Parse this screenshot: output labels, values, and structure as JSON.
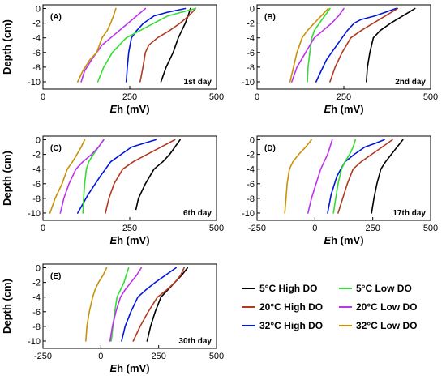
{
  "chart_data": [
    {
      "type": "line",
      "panel_label": "(A)",
      "day_label": "1st day",
      "xlabel_prefix": "E",
      "xlabel_suffix": "h (mV)",
      "ylabel": "Depth (cm)",
      "xlim": [
        0,
        500
      ],
      "ylim": [
        -11,
        0.5
      ],
      "xticks": [
        0,
        250,
        500
      ],
      "yticks": [
        0,
        -2,
        -4,
        -6,
        -8,
        -10
      ],
      "series": [
        {
          "name": "5°C High DO",
          "color": "#000000",
          "x": [
            425,
            418,
            410,
            400,
            390,
            375,
            365,
            355,
            340
          ],
          "y": [
            0,
            -1,
            -2,
            -3,
            -4,
            -6,
            -7,
            -8,
            -10
          ]
        },
        {
          "name": "20°C High DO",
          "color": "#b03a22",
          "x": [
            440,
            420,
            395,
            365,
            330,
            305,
            295,
            288,
            280
          ],
          "y": [
            0,
            -1,
            -2,
            -3,
            -4,
            -5,
            -6,
            -8,
            -10
          ]
        },
        {
          "name": "32°C High DO",
          "color": "#0018d8",
          "x": [
            410,
            360,
            320,
            290,
            270,
            255,
            247,
            243,
            240
          ],
          "y": [
            0,
            -0.5,
            -1,
            -2,
            -3,
            -4,
            -6,
            -8,
            -10
          ]
        },
        {
          "name": "5°C Low DO",
          "color": "#33dd33",
          "x": [
            440,
            400,
            360,
            320,
            280,
            240,
            200,
            175,
            158
          ],
          "y": [
            0,
            -0.5,
            -1,
            -2,
            -3,
            -4,
            -6,
            -8,
            -10
          ]
        },
        {
          "name": "20°C Low DO",
          "color": "#bb33ee",
          "x": [
            295,
            270,
            245,
            220,
            195,
            170,
            140,
            120,
            110
          ],
          "y": [
            0,
            -1,
            -2,
            -3,
            -4,
            -5,
            -7,
            -8.5,
            -10
          ]
        },
        {
          "name": "32°C Low DO",
          "color": "#c8920a",
          "x": [
            210,
            203,
            195,
            185,
            170,
            155,
            135,
            115,
            100
          ],
          "y": [
            0,
            -1,
            -2,
            -3,
            -4,
            -6,
            -7,
            -8.5,
            -10
          ]
        }
      ]
    },
    {
      "type": "line",
      "panel_label": "(B)",
      "day_label": "2nd day",
      "xlabel_prefix": "E",
      "xlabel_suffix": "h (mV)",
      "xlim": [
        0,
        500
      ],
      "ylim": [
        -11,
        0.5
      ],
      "xticks": [
        0,
        250,
        500
      ],
      "yticks": [
        0,
        -2,
        -4,
        -6,
        -8,
        -10
      ],
      "series": [
        {
          "name": "5°C High DO",
          "color": "#000000",
          "x": [
            455,
            420,
            385,
            355,
            335,
            325,
            318,
            315
          ],
          "y": [
            0,
            -1,
            -2,
            -3,
            -4,
            -6,
            -8,
            -10
          ]
        },
        {
          "name": "20°C High DO",
          "color": "#b03a22",
          "x": [
            405,
            370,
            335,
            300,
            270,
            245,
            225,
            210
          ],
          "y": [
            0,
            -1,
            -2,
            -3,
            -4,
            -6,
            -8,
            -10
          ]
        },
        {
          "name": "32°C High DO",
          "color": "#0018d8",
          "x": [
            400,
            340,
            300,
            280,
            260,
            230,
            200,
            180,
            170
          ],
          "y": [
            0,
            -1,
            -1.5,
            -2,
            -3,
            -5,
            -7,
            -9,
            -10
          ]
        },
        {
          "name": "5°C Low DO",
          "color": "#33dd33",
          "x": [
            210,
            195,
            180,
            165,
            158,
            152,
            147,
            145
          ],
          "y": [
            0,
            -1,
            -2,
            -3,
            -4,
            -6,
            -8,
            -10
          ]
        },
        {
          "name": "20°C Low DO",
          "color": "#bb33ee",
          "x": [
            250,
            235,
            215,
            190,
            165,
            140,
            115,
            100
          ],
          "y": [
            0,
            -1,
            -2,
            -3,
            -4,
            -6,
            -8,
            -10
          ]
        },
        {
          "name": "32°C Low DO",
          "color": "#c8920a",
          "x": [
            205,
            185,
            165,
            145,
            130,
            115,
            105,
            95
          ],
          "y": [
            0,
            -1,
            -2,
            -3,
            -4,
            -6,
            -8,
            -10
          ]
        }
      ]
    },
    {
      "type": "line",
      "panel_label": "(C)",
      "day_label": "6th day",
      "xlabel_prefix": "E",
      "xlabel_suffix": "h (mV)",
      "ylabel": "Depth (cm)",
      "xlim": [
        0,
        500
      ],
      "ylim": [
        -11,
        0.5
      ],
      "xticks": [
        0,
        250,
        500
      ],
      "yticks": [
        0,
        -2,
        -4,
        -6,
        -8,
        -10
      ],
      "series": [
        {
          "name": "5°C High DO",
          "color": "#000000",
          "x": [
            395,
            380,
            365,
            345,
            320,
            295,
            275,
            268
          ],
          "y": [
            0,
            -1,
            -2,
            -3,
            -4,
            -6,
            -8,
            -9.5
          ]
        },
        {
          "name": "20°C High DO",
          "color": "#b03a22",
          "x": [
            380,
            340,
            300,
            260,
            230,
            205,
            190,
            180
          ],
          "y": [
            0,
            -1,
            -2,
            -3,
            -4,
            -6,
            -8,
            -10
          ]
        },
        {
          "name": "32°C High DO",
          "color": "#0018d8",
          "x": [
            325,
            290,
            255,
            225,
            195,
            165,
            130,
            100
          ],
          "y": [
            0,
            -0.5,
            -1,
            -2,
            -3,
            -5,
            -7.5,
            -10
          ]
        },
        {
          "name": "5°C Low DO",
          "color": "#33dd33",
          "x": [
            175,
            160,
            145,
            132,
            125,
            120,
            117,
            115
          ],
          "y": [
            0,
            -1,
            -2,
            -3,
            -4,
            -6,
            -8,
            -10
          ]
        },
        {
          "name": "20°C Low DO",
          "color": "#bb33ee",
          "x": [
            175,
            160,
            140,
            115,
            95,
            75,
            60,
            50
          ],
          "y": [
            0,
            -1,
            -2,
            -3,
            -4,
            -6,
            -8,
            -10
          ]
        },
        {
          "name": "32°C Low DO",
          "color": "#c8920a",
          "x": [
            120,
            110,
            98,
            85,
            70,
            55,
            35,
            20
          ],
          "y": [
            0,
            -1,
            -2,
            -3,
            -4,
            -6,
            -8,
            -10
          ]
        }
      ]
    },
    {
      "type": "line",
      "panel_label": "(D)",
      "day_label": "17th day",
      "xlabel_prefix": "E",
      "xlabel_suffix": "h (mV)",
      "xlim": [
        -250,
        500
      ],
      "ylim": [
        -11,
        0.5
      ],
      "xticks": [
        -250,
        0,
        250,
        500
      ],
      "yticks": [
        0,
        -2,
        -4,
        -6,
        -8,
        -10
      ],
      "series": [
        {
          "name": "5°C High DO",
          "color": "#000000",
          "x": [
            380,
            355,
            330,
            305,
            285,
            268,
            255,
            245
          ],
          "y": [
            0,
            -1,
            -2,
            -3,
            -4,
            -6,
            -8,
            -10
          ]
        },
        {
          "name": "20°C High DO",
          "color": "#b03a22",
          "x": [
            335,
            290,
            245,
            200,
            165,
            140,
            120,
            100
          ],
          "y": [
            0,
            -1,
            -2,
            -3,
            -4,
            -6,
            -8,
            -10
          ]
        },
        {
          "name": "32°C High DO",
          "color": "#0018d8",
          "x": [
            300,
            260,
            215,
            170,
            130,
            95,
            70,
            55
          ],
          "y": [
            0,
            -0.5,
            -1,
            -2,
            -3,
            -5,
            -7.5,
            -10
          ]
        },
        {
          "name": "5°C Low DO",
          "color": "#33dd33",
          "x": [
            175,
            165,
            150,
            130,
            115,
            100,
            90,
            80
          ],
          "y": [
            0,
            -1,
            -2,
            -3,
            -4,
            -6,
            -8,
            -10
          ]
        },
        {
          "name": "20°C Low DO",
          "color": "#bb33ee",
          "x": [
            75,
            65,
            55,
            40,
            25,
            5,
            -15,
            -30
          ],
          "y": [
            0,
            -1,
            -2,
            -3,
            -4,
            -6,
            -8,
            -10
          ]
        },
        {
          "name": "32°C Low DO",
          "color": "#c8920a",
          "x": [
            -15,
            -40,
            -70,
            -95,
            -110,
            -120,
            -125,
            -130
          ],
          "y": [
            0,
            -1,
            -2,
            -3,
            -4,
            -6,
            -8,
            -10
          ]
        }
      ]
    },
    {
      "type": "line",
      "panel_label": "(E)",
      "day_label": "30th day",
      "xlabel_prefix": "E",
      "xlabel_suffix": "h (mV)",
      "ylabel": "Depth (cm)",
      "xlim": [
        -250,
        500
      ],
      "ylim": [
        -11,
        0.5
      ],
      "xticks": [
        -250,
        0,
        250,
        500
      ],
      "yticks": [
        0,
        -2,
        -4,
        -6,
        -8,
        -10
      ],
      "series": [
        {
          "name": "5°C High DO",
          "color": "#000000",
          "x": [
            375,
            350,
            320,
            290,
            260,
            235,
            215,
            200
          ],
          "y": [
            0,
            -1,
            -2,
            -3,
            -4,
            -6,
            -8,
            -10
          ]
        },
        {
          "name": "20°C High DO",
          "color": "#b03a22",
          "x": [
            360,
            345,
            320,
            285,
            245,
            205,
            170,
            140
          ],
          "y": [
            0,
            -1,
            -2,
            -3,
            -4,
            -6,
            -8,
            -10
          ]
        },
        {
          "name": "32°C High DO",
          "color": "#0018d8",
          "x": [
            325,
            280,
            235,
            195,
            160,
            130,
            105,
            90
          ],
          "y": [
            0,
            -1,
            -2,
            -3,
            -4,
            -6,
            -8,
            -10
          ]
        },
        {
          "name": "5°C Low DO",
          "color": "#33dd33",
          "x": [
            120,
            110,
            100,
            85,
            70,
            60,
            52,
            45
          ],
          "y": [
            0,
            -1,
            -2,
            -3,
            -4,
            -6,
            -8,
            -10
          ]
        },
        {
          "name": "20°C Low DO",
          "color": "#bb33ee",
          "x": [
            175,
            155,
            130,
            105,
            85,
            65,
            50,
            40
          ],
          "y": [
            0,
            -1,
            -2,
            -3,
            -4,
            -6,
            -8,
            -10
          ]
        },
        {
          "name": "32°C Low DO",
          "color": "#c8920a",
          "x": [
            25,
            10,
            -10,
            -25,
            -35,
            -50,
            -60,
            -65
          ],
          "y": [
            0,
            -1,
            -2,
            -3,
            -4,
            -6,
            -8,
            -10
          ]
        }
      ]
    }
  ],
  "legend": [
    {
      "label": "5°C High DO",
      "color": "#000000"
    },
    {
      "label": "5°C Low DO",
      "color": "#33dd33"
    },
    {
      "label": "20°C High DO",
      "color": "#b03a22"
    },
    {
      "label": "20°C Low DO",
      "color": "#bb33ee"
    },
    {
      "label": "32°C High DO",
      "color": "#0018d8"
    },
    {
      "label": "32°C Low DO",
      "color": "#c8920a"
    }
  ]
}
